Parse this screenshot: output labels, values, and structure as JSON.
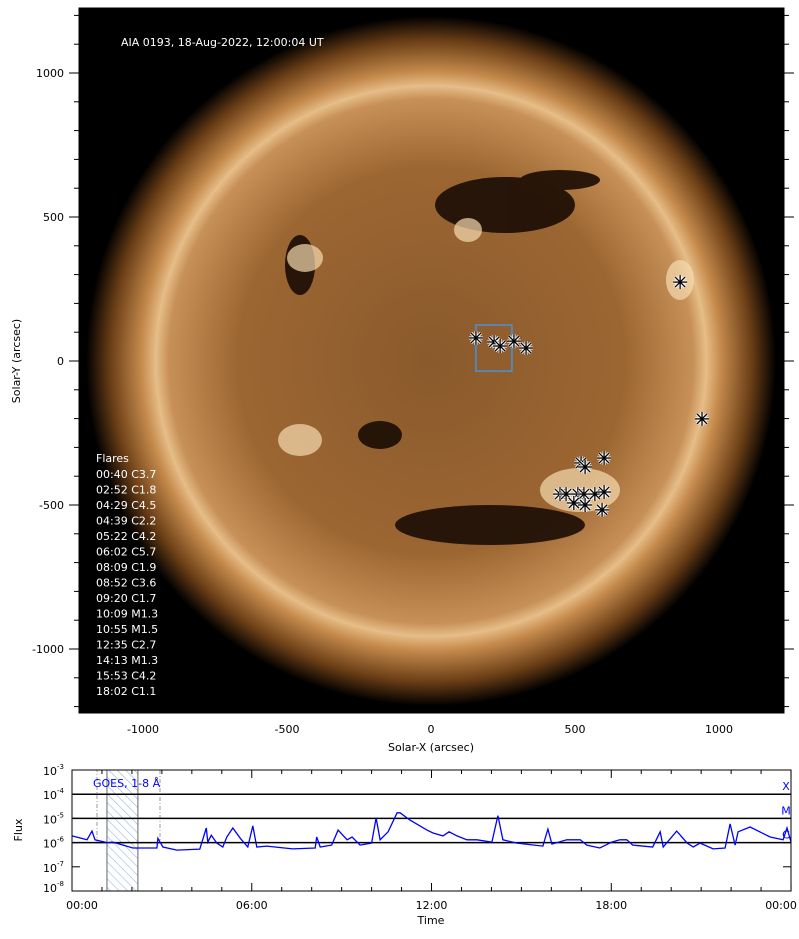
{
  "chart_data": [
    {
      "type": "image",
      "title": "AIA 0193, 18-Aug-2022, 12:00:04 UT",
      "xlabel": "Solar-X (arcsec)",
      "ylabel": "Solar-Y (arcsec)",
      "xlim": [
        -1225,
        1225
      ],
      "ylim": [
        -1225,
        1225
      ],
      "xticks": [
        -1000,
        -500,
        0,
        500,
        1000
      ],
      "yticks": [
        -1000,
        -500,
        0,
        500,
        1000
      ],
      "flares_title": "Flares",
      "flares": [
        "00:40 C3.7",
        "02:52 C1.8",
        "04:29 C4.5",
        "04:39 C2.2",
        "05:22 C4.2",
        "06:02 C5.7",
        "08:09 C1.9",
        "08:52 C3.6",
        "09:20 C1.7",
        "10:09 M1.3",
        "10:55 M1.5",
        "12:35 C2.7",
        "14:13 M1.3",
        "15:53 C4.2",
        "18:02 C1.1"
      ],
      "flare_positions": [
        [
          156,
          80
        ],
        [
          219,
          66
        ],
        [
          240,
          52
        ],
        [
          288,
          69
        ],
        [
          330,
          45
        ],
        [
          865,
          274
        ],
        [
          941,
          -201
        ],
        [
          521,
          -354
        ],
        [
          535,
          -368
        ],
        [
          601,
          -337
        ],
        [
          448,
          -462
        ],
        [
          469,
          -462
        ],
        [
          510,
          -462
        ],
        [
          531,
          -462
        ],
        [
          569,
          -462
        ],
        [
          601,
          -455
        ],
        [
          496,
          -493
        ],
        [
          535,
          -500
        ],
        [
          594,
          -517
        ]
      ],
      "box": {
        "x": [
          156,
          281
        ],
        "y": [
          -35,
          125
        ],
        "color": "#4a90d9"
      }
    },
    {
      "type": "line",
      "title": "GOES, 1-8 Å",
      "xlabel": "Time",
      "ylabel": "Flux",
      "xticks": [
        "00:00",
        "06:00",
        "12:00",
        "18:00",
        "00:00"
      ],
      "yticks": [
        "10-3",
        "10-4",
        "10-5",
        "10-6",
        "10-7",
        "10-8"
      ],
      "ylim": [
        1e-08,
        0.001
      ],
      "yscale": "log",
      "class_labels": [
        "X",
        "M",
        "C"
      ],
      "series_color": "#0000ff",
      "highlight": [
        "01:10",
        "02:12"
      ],
      "x": [
        "00:00",
        "00:30",
        "00:40",
        "00:46",
        "01:10",
        "01:22",
        "02:02",
        "02:50",
        "02:52",
        "03:02",
        "03:30",
        "04:16",
        "04:29",
        "04:32",
        "04:39",
        "04:50",
        "05:02",
        "05:10",
        "05:22",
        "05:37",
        "05:52",
        "06:02",
        "06:10",
        "06:30",
        "07:22",
        "08:07",
        "08:10",
        "08:17",
        "08:40",
        "08:53",
        "09:11",
        "09:21",
        "09:37",
        "10:00",
        "10:09",
        "10:17",
        "10:33",
        "10:51",
        "10:57",
        "11:17",
        "11:51",
        "12:03",
        "12:23",
        "12:35",
        "12:51",
        "13:11",
        "13:31",
        "14:01",
        "14:13",
        "14:23",
        "14:51",
        "15:43",
        "15:53",
        "16:01",
        "16:31",
        "16:58",
        "17:11",
        "17:37",
        "18:01",
        "18:17",
        "18:31",
        "18:43",
        "19:23",
        "19:38",
        "19:44",
        "20:11",
        "20:32",
        "20:44",
        "20:58",
        "21:24",
        "21:48",
        "21:58",
        "22:08",
        "22:14",
        "22:38",
        "23:18",
        "23:44",
        "23:52",
        "24:00"
      ],
      "y": [
        1.9e-06,
        1.3e-06,
        3e-06,
        1.3e-06,
        1e-06,
        1.05e-06,
        6e-07,
        6e-07,
        1.5e-06,
        6.6e-07,
        4.9e-07,
        5.4e-07,
        4e-06,
        1.05e-06,
        2e-06,
        9.5e-07,
        6.6e-07,
        1.7e-06,
        4e-06,
        1.5e-06,
        6.6e-07,
        4.9e-06,
        6.6e-07,
        7.2e-07,
        5.5e-07,
        6e-07,
        1.7e-06,
        6.6e-07,
        7.9e-07,
        3.3e-06,
        1.3e-06,
        1.7e-06,
        7.9e-07,
        9.5e-07,
        1.05e-05,
        1.3e-06,
        2.8e-06,
        1.7e-05,
        1.7e-05,
        8.5e-06,
        3.3e-06,
        2.5e-06,
        1.9e-06,
        2.8e-06,
        1.9e-06,
        1.3e-06,
        1.3e-06,
        1.05e-06,
        1.3e-05,
        1.3e-06,
        9.5e-07,
        7.2e-07,
        3.6e-06,
        8.7e-07,
        1.3e-06,
        1.3e-06,
        7.9e-07,
        6e-07,
        1.05e-06,
        1.3e-06,
        1.3e-06,
        7.9e-07,
        6.6e-07,
        2.8e-06,
        6.6e-07,
        3e-06,
        9.5e-07,
        6.6e-07,
        9.5e-07,
        5.5e-07,
        6e-07,
        5.9e-06,
        7.9e-07,
        2.8e-06,
        4.4e-06,
        1.7e-06,
        1.3e-06,
        4e-06,
        1.05e-06
      ]
    }
  ]
}
